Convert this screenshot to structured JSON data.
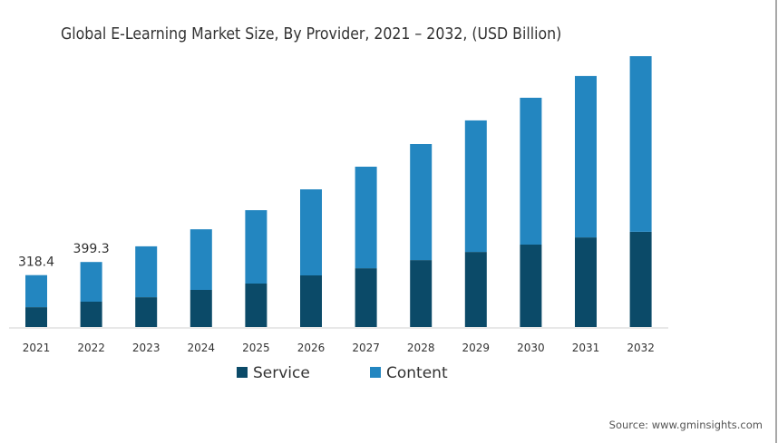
{
  "chart_data": {
    "type": "bar",
    "stacked": true,
    "title": "Global E-Learning Market Size, By Provider, 2021 – 2032, (USD Billion)",
    "xlabel": "",
    "ylabel": "",
    "categories": [
      "2021",
      "2022",
      "2023",
      "2024",
      "2025",
      "2026",
      "2027",
      "2028",
      "2029",
      "2030",
      "2031",
      "2032"
    ],
    "series": [
      {
        "name": "Service",
        "color": "#0b4a68",
        "values": [
          122,
          156,
          183,
          228,
          267,
          317,
          361,
          411,
          461,
          506,
          550,
          584
        ]
      },
      {
        "name": "Content",
        "color": "#2386c0",
        "values": [
          196.4,
          243.3,
          312,
          372,
          450,
          528,
          623,
          712,
          807,
          901,
          990,
          1078
        ]
      }
    ],
    "totals": [
      318.4,
      399.3,
      495,
      600,
      717,
      845,
      984,
      1123,
      1268,
      1407,
      1540,
      1662
    ],
    "data_labels": [
      {
        "category": "2021",
        "text": "318.4"
      },
      {
        "category": "2022",
        "text": "399.3"
      }
    ],
    "ylim": [
      0,
      1662
    ],
    "grid": false,
    "y_axis_visible": false,
    "legend": {
      "placement": "bottom-center",
      "entries": [
        "Service",
        "Content"
      ]
    },
    "source": "Source: www.gminsights.com"
  }
}
